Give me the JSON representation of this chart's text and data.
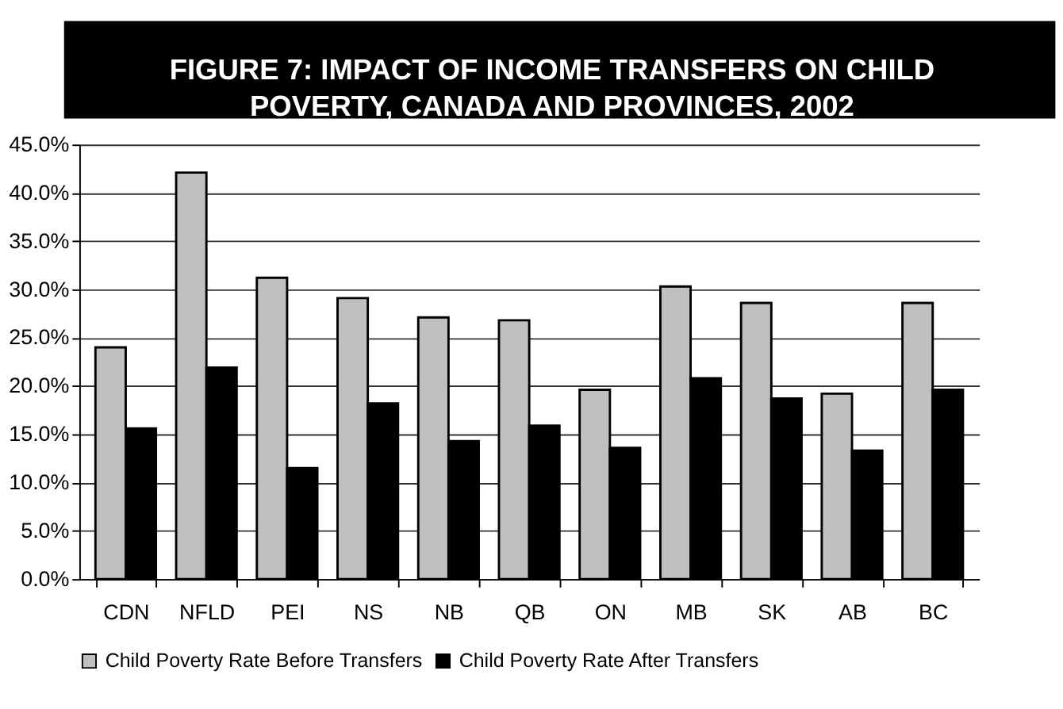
{
  "chart_data": {
    "type": "bar",
    "title": "FIGURE 7: IMPACT OF INCOME TRANSFERS ON CHILD POVERTY, CANADA AND PROVINCES,  2002",
    "categories": [
      "CDN",
      "NFLD",
      "PEI",
      "NS",
      "NB",
      "QB",
      "ON",
      "MB",
      "SK",
      "AB",
      "BC"
    ],
    "series": [
      {
        "name": "Child Poverty Rate Before Transfers",
        "color": "#c0c0c0",
        "values": [
          24.0,
          42.1,
          31.2,
          29.1,
          27.1,
          26.8,
          19.6,
          30.3,
          28.6,
          19.2,
          28.6
        ]
      },
      {
        "name": "Child Poverty Rate After Transfers",
        "color": "#000000",
        "values": [
          15.6,
          21.9,
          11.5,
          18.2,
          14.3,
          15.9,
          13.6,
          20.8,
          18.7,
          13.3,
          19.6
        ]
      }
    ],
    "ylim": [
      0,
      45
    ],
    "yticks": [
      {
        "value": 0,
        "label": "0.0%"
      },
      {
        "value": 5,
        "label": "5.0%"
      },
      {
        "value": 10,
        "label": "10.0%"
      },
      {
        "value": 15,
        "label": "15.0%"
      },
      {
        "value": 20,
        "label": "20.0%"
      },
      {
        "value": 25,
        "label": "25.0%"
      },
      {
        "value": 30,
        "label": "30.0%"
      },
      {
        "value": 35,
        "label": "35.0%"
      },
      {
        "value": 40,
        "label": "40.0%"
      },
      {
        "value": 45,
        "label": "45.0%"
      }
    ],
    "grid": "y",
    "legend": "bottom"
  }
}
